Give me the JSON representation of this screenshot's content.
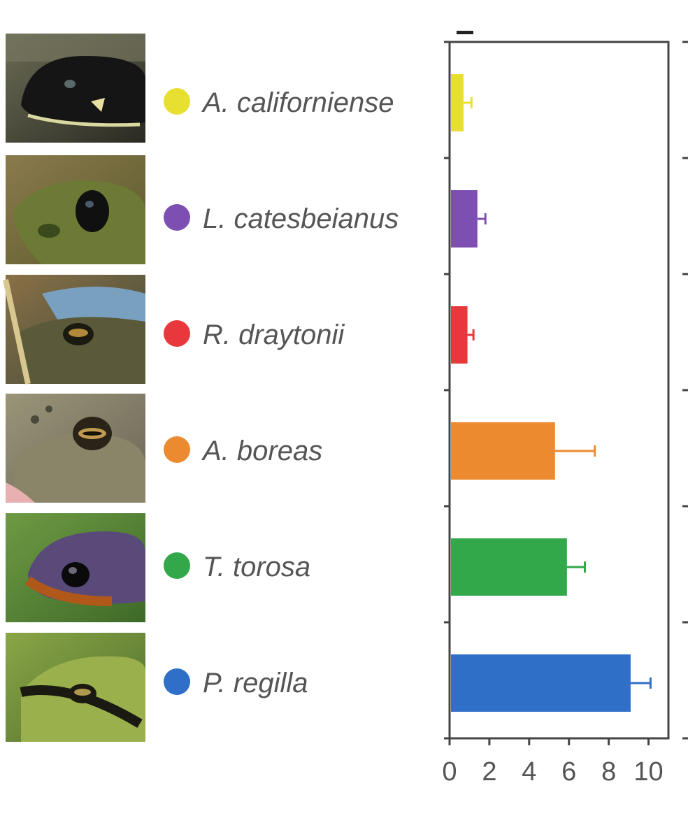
{
  "chart_data": {
    "type": "bar",
    "orientation": "horizontal",
    "categories": [
      "A. californiense",
      "L. catesbeianus",
      "R. draytonii",
      "A. boreas",
      "T. torosa",
      "P. regilla"
    ],
    "values": [
      0.7,
      1.4,
      0.9,
      5.3,
      5.9,
      9.1
    ],
    "errors": [
      0.4,
      0.4,
      0.3,
      2.0,
      0.9,
      1.0
    ],
    "colors": [
      "#e8e030",
      "#7e4fb3",
      "#e8383d",
      "#ec8a2f",
      "#32a84a",
      "#2f6fc8"
    ],
    "xlim": [
      0,
      11
    ],
    "xticks": [
      0,
      2,
      4,
      6,
      8,
      10
    ],
    "xtick_labels": [
      "0",
      "2",
      "4",
      "6",
      "8",
      "10"
    ],
    "grid": false,
    "legend": "none",
    "thumbnails": [
      "salamander-photo",
      "bullfrog-photo",
      "red-legged-frog-photo",
      "toad-photo",
      "newt-photo",
      "treefrog-photo"
    ]
  }
}
